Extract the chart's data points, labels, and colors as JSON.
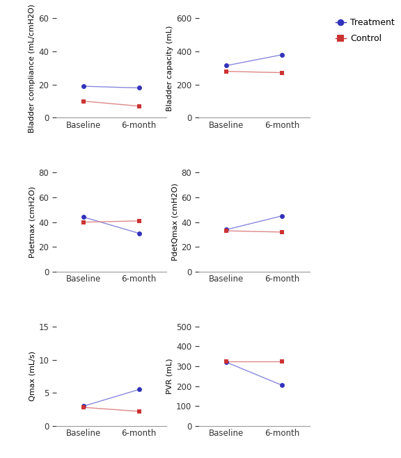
{
  "panels": [
    {
      "ylabel": "Bladder compliance (mL/cmH2O)",
      "ylim": [
        0,
        60
      ],
      "yticks": [
        0,
        20,
        40,
        60
      ],
      "treatment": [
        19,
        18
      ],
      "control": [
        10,
        7
      ],
      "row": 0,
      "col": 0
    },
    {
      "ylabel": "Bladder capacity (mL)",
      "ylim": [
        0,
        600
      ],
      "yticks": [
        0,
        200,
        400,
        600
      ],
      "treatment": [
        315,
        380
      ],
      "control": [
        280,
        272
      ],
      "row": 0,
      "col": 1
    },
    {
      "ylabel": "Pdetmax (cmH2O)",
      "ylim": [
        0,
        80
      ],
      "yticks": [
        0,
        20,
        40,
        60,
        80
      ],
      "treatment": [
        44,
        31
      ],
      "control": [
        40,
        41
      ],
      "row": 1,
      "col": 0
    },
    {
      "ylabel": "PdetQmax (cmH2O)",
      "ylim": [
        0,
        80
      ],
      "yticks": [
        0,
        20,
        40,
        60,
        80
      ],
      "treatment": [
        34,
        45
      ],
      "control": [
        33,
        32
      ],
      "row": 1,
      "col": 1
    },
    {
      "ylabel": "Qmax (mL/s)",
      "ylim": [
        0,
        15
      ],
      "yticks": [
        0,
        5,
        10,
        15
      ],
      "treatment": [
        3,
        5.5
      ],
      "control": [
        2.8,
        2.2
      ],
      "row": 2,
      "col": 0
    },
    {
      "ylabel": "PVR (mL)",
      "ylim": [
        0,
        500
      ],
      "yticks": [
        0,
        100,
        200,
        300,
        400,
        500
      ],
      "treatment": [
        320,
        205
      ],
      "control": [
        325,
        325
      ],
      "row": 2,
      "col": 1
    }
  ],
  "xticklabels": [
    "Baseline",
    "6-month"
  ],
  "treatment_color": "#3333bb",
  "control_color": "#cc3333",
  "treatment_line_color": "#8888dd",
  "control_line_color": "#dd8888",
  "treatment_label": "Treatment",
  "control_label": "Control"
}
